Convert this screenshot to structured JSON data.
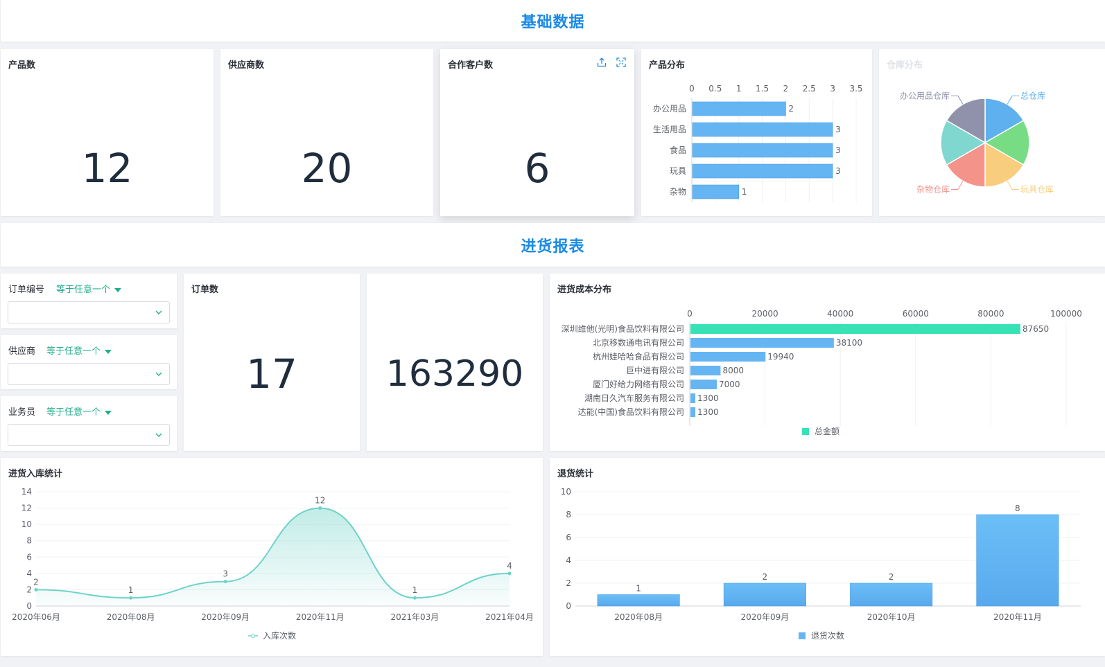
{
  "sections": {
    "basic": "基础数据",
    "purchase": "进货报表"
  },
  "kpis": [
    {
      "title": "产品数",
      "value": "12"
    },
    {
      "title": "供应商数",
      "value": "20"
    },
    {
      "title": "合作客户数",
      "value": "6"
    },
    {
      "title": "订单数",
      "value": "17"
    },
    {
      "title": "",
      "value": "163290"
    }
  ],
  "filters": [
    {
      "label": "订单编号",
      "op": "等于任意一个",
      "value": ""
    },
    {
      "label": "供应商",
      "op": "等于任意一个",
      "value": ""
    },
    {
      "label": "业务员",
      "op": "等于任意一个",
      "value": ""
    }
  ],
  "icons": {
    "export": "upload-icon",
    "fullscreen": "fullscreen-icon",
    "dropdown": "chevron-down-icon"
  },
  "colors": {
    "title": "#1a8ae6",
    "bar": "#66b5f3",
    "green": "#37e2b5",
    "line": "#6ed3c8",
    "filter": "#1fae8a"
  },
  "chart_data": [
    {
      "id": "product",
      "type": "bar",
      "orientation": "horizontal",
      "title": "产品分布",
      "categories": [
        "办公用品",
        "生活用品",
        "食品",
        "玩具",
        "杂物"
      ],
      "values": [
        2,
        3,
        3,
        3,
        1
      ],
      "xlim": [
        0,
        3.5
      ],
      "xticks": [
        "0",
        "0.5",
        "1",
        "1.5",
        "2",
        "2.5",
        "3",
        "3.5"
      ],
      "grid": true
    },
    {
      "id": "warehouse",
      "type": "pie",
      "title": "仓库分布",
      "labels": [
        "总仓库",
        "玩具仓库",
        "杂物仓库",
        "办公用品仓库"
      ],
      "slices": [
        {
          "name": "总仓库",
          "value": 1,
          "color": "#5fb0ef",
          "label": "总仓库"
        },
        {
          "name": "",
          "value": 1,
          "color": "#78dc85",
          "label": ""
        },
        {
          "name": "玩具仓库",
          "value": 1,
          "color": "#f8cd7e",
          "label": "玩具仓库"
        },
        {
          "name": "杂物仓库",
          "value": 1,
          "color": "#f4938a",
          "label": "杂物仓库"
        },
        {
          "name": "",
          "value": 1,
          "color": "#7fd7cf",
          "label": ""
        },
        {
          "name": "办公用品仓库",
          "value": 1,
          "color": "#8f92aa",
          "label": "办公用品仓库"
        }
      ]
    },
    {
      "id": "cost",
      "type": "bar",
      "orientation": "horizontal",
      "title": "进货成本分布",
      "categories": [
        "深圳维他(光明)食品饮料有限公司",
        "北京移数通电讯有限公司",
        "杭州娃哈哈食品有限公司",
        "巨中进有限公司",
        "厦门好给力网络有限公司",
        "湖南日久汽车服务有限公司",
        "达能(中国)食品饮料有限公司"
      ],
      "values": [
        87650,
        38100,
        19940,
        8000,
        7000,
        1300,
        1300
      ],
      "xlim": [
        0,
        100000
      ],
      "xticks": [
        "0",
        "20000",
        "40000",
        "60000",
        "80000",
        "100000"
      ],
      "legend": "总金额",
      "legend_position": "bottom",
      "grid": true
    },
    {
      "id": "inbound",
      "type": "area",
      "title": "进货入库统计",
      "categories": [
        "2020年06月",
        "2020年08月",
        "2020年09月",
        "2020年11月",
        "2021年03月",
        "2021年04月"
      ],
      "values": [
        2,
        1,
        3,
        12,
        1,
        4
      ],
      "ylim": [
        0,
        14
      ],
      "yticks": [
        "0",
        "2",
        "4",
        "6",
        "8",
        "10",
        "12",
        "14"
      ],
      "legend": "入库次数",
      "legend_position": "bottom",
      "grid": true
    },
    {
      "id": "returns",
      "type": "bar",
      "orientation": "vertical",
      "title": "退货统计",
      "categories": [
        "2020年08月",
        "2020年09月",
        "2020年10月",
        "2020年11月"
      ],
      "values": [
        1,
        2,
        2,
        8
      ],
      "ylim": [
        0,
        10
      ],
      "yticks": [
        "0",
        "2",
        "4",
        "6",
        "8",
        "10"
      ],
      "legend": "退货次数",
      "legend_position": "bottom",
      "grid": true
    }
  ]
}
